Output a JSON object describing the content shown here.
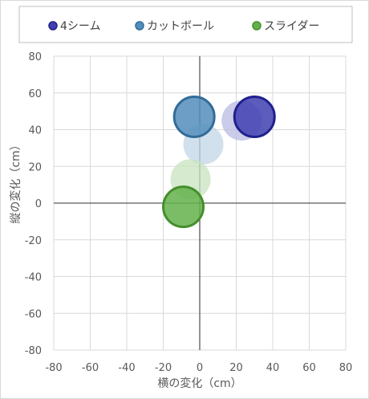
{
  "chart_data": {
    "type": "bubble",
    "xlabel": "横の変化（cm）",
    "ylabel": "縦の変化（cm）",
    "xlim": [
      -80,
      80
    ],
    "ylim": [
      -80,
      80
    ],
    "xticks": [
      -80,
      -60,
      -40,
      -20,
      0,
      20,
      40,
      60,
      80
    ],
    "yticks": [
      -80,
      -60,
      -40,
      -20,
      0,
      20,
      40,
      60,
      80
    ],
    "grid": true,
    "legend_position": "top",
    "series": [
      {
        "name": "4シーム",
        "color": "#2626a6",
        "points": [
          {
            "x": 23,
            "y": 45,
            "faded": true
          },
          {
            "x": 30,
            "y": 47,
            "faded": false
          }
        ]
      },
      {
        "name": "カットボール",
        "color": "#3b7fb3",
        "points": [
          {
            "x": 2,
            "y": 32,
            "faded": true
          },
          {
            "x": -3,
            "y": 47,
            "faded": false
          }
        ]
      },
      {
        "name": "スライダー",
        "color": "#4fa832",
        "points": [
          {
            "x": -5,
            "y": 13,
            "faded": true
          },
          {
            "x": -9,
            "y": -2,
            "faded": false
          }
        ]
      }
    ]
  }
}
